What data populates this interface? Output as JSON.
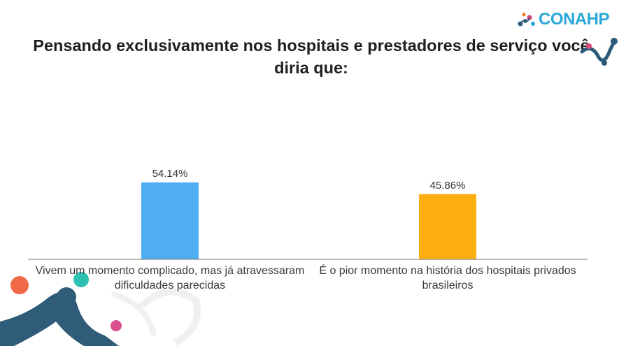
{
  "logo": {
    "text": "CONAHP",
    "icon": "conahp-logo-icon",
    "color": "#2aa8d8"
  },
  "chart_data": {
    "type": "bar",
    "title": "Pensando exclusivamente nos hospitais e prestadores de serviço você diria que:",
    "categories": [
      "Vivem um momento complicado, mas já atravessaram dificuldades parecidas",
      "É o pior momento na história dos hospitais privados brasileiros"
    ],
    "values": [
      54.14,
      45.86
    ],
    "value_labels": [
      "54.14%",
      "45.86%"
    ],
    "colors": [
      "#4fadf2",
      "#fcad0f"
    ],
    "ylim": [
      0,
      54.14
    ],
    "grid": false,
    "legend": "none"
  }
}
